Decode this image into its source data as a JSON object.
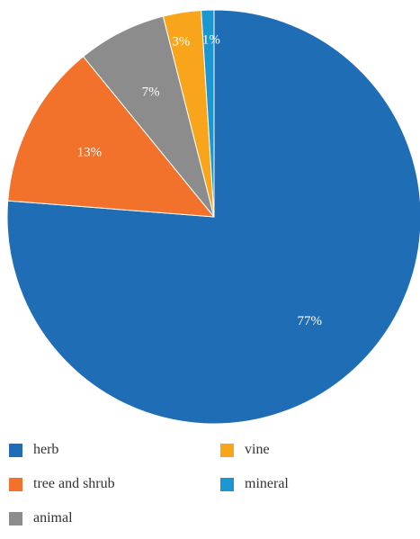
{
  "chart_data": {
    "type": "pie",
    "title": "",
    "start_angle_deg": 90,
    "direction": "clockwise",
    "slices": [
      {
        "name": "herb",
        "value": 77,
        "label": "77%",
        "color": "#1f6db5"
      },
      {
        "name": "tree and shrub",
        "value": 13,
        "label": "13%",
        "color": "#f2712b"
      },
      {
        "name": "animal",
        "value": 7,
        "label": "7%",
        "color": "#8c8c8c"
      },
      {
        "name": "vine",
        "value": 3,
        "label": "3%",
        "color": "#f8a51b"
      },
      {
        "name": "mineral",
        "value": 1,
        "label": "1%",
        "color": "#1a97d0"
      }
    ],
    "legend": {
      "placement": "bottom",
      "columns": 2,
      "items": [
        {
          "name": "herb",
          "color": "#1f6db5"
        },
        {
          "name": "vine",
          "color": "#f8a51b"
        },
        {
          "name": "tree and shrub",
          "color": "#f2712b"
        },
        {
          "name": "mineral",
          "color": "#1a97d0"
        },
        {
          "name": "animal",
          "color": "#8c8c8c"
        }
      ]
    }
  }
}
